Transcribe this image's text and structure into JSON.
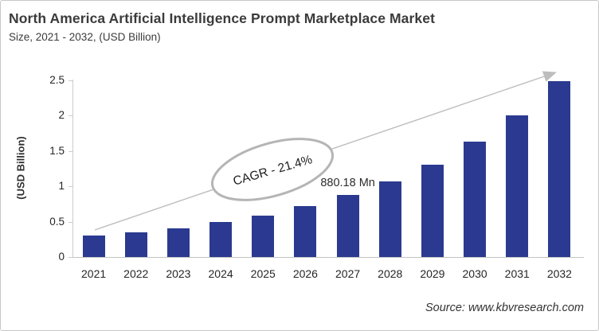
{
  "header": {
    "title": "North America Artificial Intelligence Prompt Marketplace Market",
    "subtitle": "Size, 2021 - 2032, (USD Billion)"
  },
  "chart_data": {
    "type": "bar",
    "title": "North America Artificial Intelligence Prompt Marketplace Market Size, 2021 - 2032, (USD Billion)",
    "categories": [
      "2021",
      "2022",
      "2023",
      "2024",
      "2025",
      "2026",
      "2027",
      "2028",
      "2029",
      "2030",
      "2031",
      "2032"
    ],
    "values": [
      0.3,
      0.35,
      0.41,
      0.49,
      0.59,
      0.72,
      0.88,
      1.07,
      1.31,
      1.63,
      2.0,
      2.49
    ],
    "xlabel": "",
    "ylabel": "(USD Billion)",
    "ylim": [
      0,
      2.5
    ],
    "yticks": [
      0,
      0.5,
      1,
      1.5,
      2,
      2.5
    ],
    "grid": false,
    "legend": false,
    "bar_color": "#2b3a90",
    "axis_color": "#cccccc",
    "trend_arrow_color": "#bdbdbd",
    "ellipse_stroke_color": "#b5b5b5",
    "cagr_label": "CAGR - 21.4%",
    "annotation": {
      "text": "880.18 Mn",
      "category": "2027"
    }
  },
  "footer": {
    "source": "Source: www.kbvresearch.com"
  }
}
